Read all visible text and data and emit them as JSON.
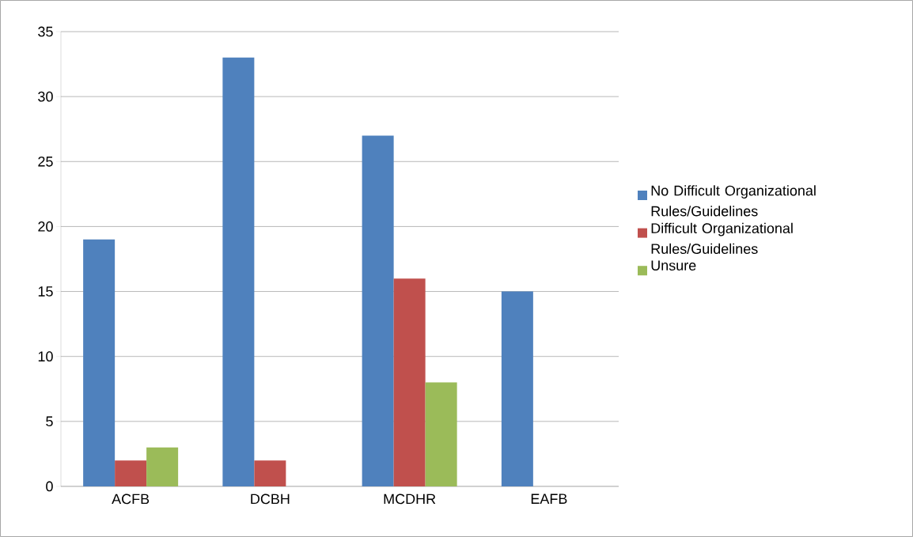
{
  "chart_data": {
    "type": "bar",
    "categories": [
      "ACFB",
      "DCBH",
      "MCDHR",
      "EAFB"
    ],
    "series": [
      {
        "name": "No Difficult Organizational Rules/Guidelines",
        "color": "#4f81bd",
        "values": [
          19,
          33,
          27,
          15
        ]
      },
      {
        "name": "Difficult Organizational Rules/Guidelines",
        "color": "#c0504d",
        "values": [
          2,
          2,
          16,
          0
        ]
      },
      {
        "name": "Unsure",
        "color": "#9bbb59",
        "values": [
          3,
          0,
          8,
          0
        ]
      }
    ],
    "ylim": [
      0,
      35
    ],
    "yticks": [
      0,
      5,
      10,
      15,
      20,
      25,
      30,
      35
    ],
    "grid": "y",
    "legend": "right"
  }
}
